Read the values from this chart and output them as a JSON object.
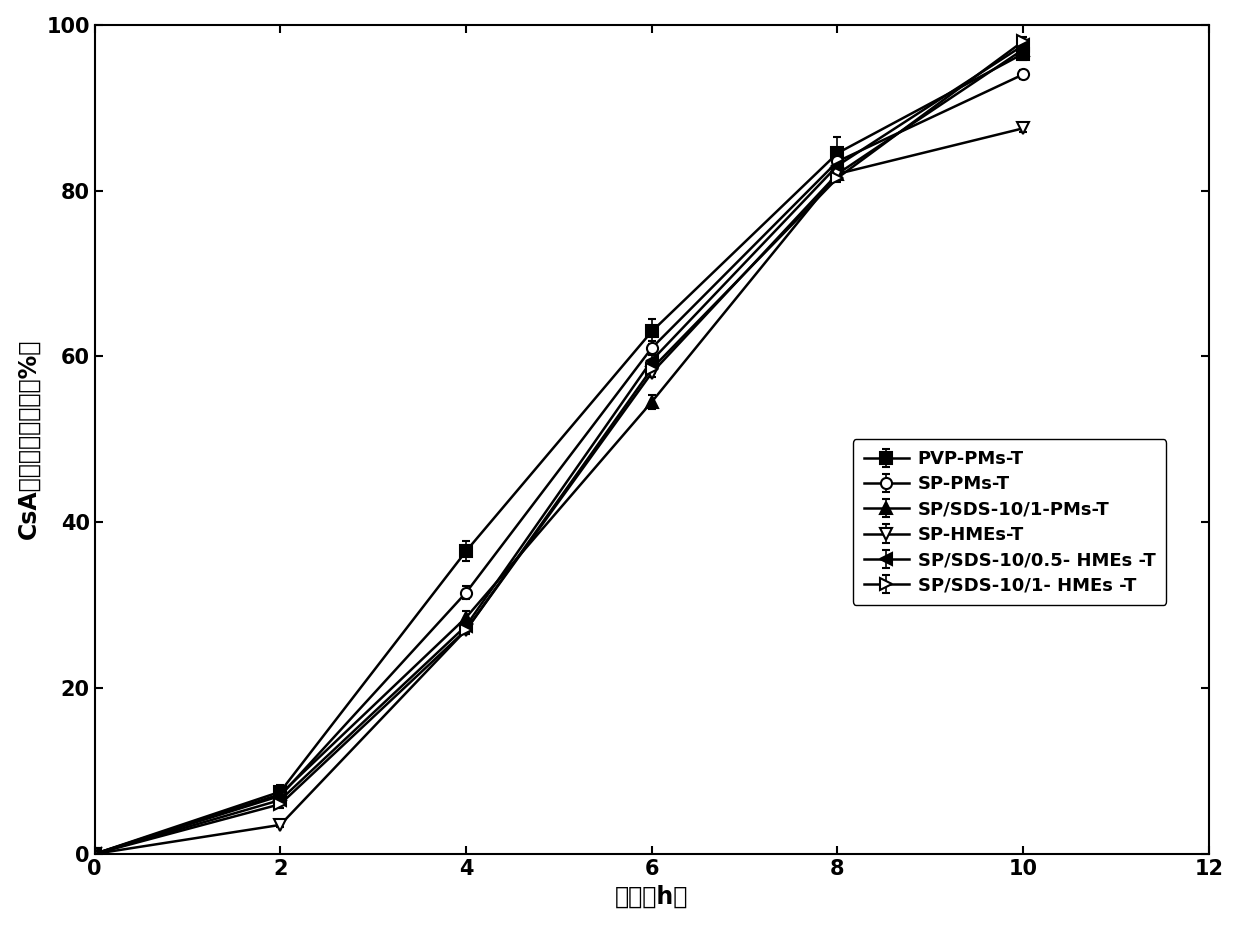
{
  "x": [
    0,
    2,
    4,
    6,
    8,
    10
  ],
  "series": [
    {
      "label": "PVP-PMs-T",
      "y": [
        0,
        7.5,
        36.5,
        63.0,
        84.5,
        96.5
      ],
      "yerr": [
        0,
        0.8,
        1.2,
        1.5,
        2.0,
        0.8
      ],
      "marker": "s",
      "filled": true,
      "color": "#000000",
      "markersize": 8
    },
    {
      "label": "SP-PMs-T",
      "y": [
        0,
        7.0,
        31.5,
        61.0,
        83.5,
        94.0
      ],
      "yerr": [
        0,
        0.5,
        0.8,
        0.8,
        0.5,
        0.5
      ],
      "marker": "o",
      "filled": false,
      "color": "#000000",
      "markersize": 8
    },
    {
      "label": "SP/SDS-10/1-PMs-T",
      "y": [
        0,
        7.2,
        28.5,
        54.5,
        82.0,
        97.0
      ],
      "yerr": [
        0,
        0.5,
        0.8,
        0.8,
        0.5,
        0.5
      ],
      "marker": "^",
      "filled": true,
      "color": "#000000",
      "markersize": 8
    },
    {
      "label": "SP-HMEs-T",
      "y": [
        0,
        3.5,
        27.0,
        58.0,
        82.0,
        87.5
      ],
      "yerr": [
        0,
        0.3,
        0.5,
        0.5,
        0.5,
        0.5
      ],
      "marker": "v",
      "filled": false,
      "color": "#000000",
      "markersize": 8
    },
    {
      "label": "SP/SDS-10/0.5- HMEs -T",
      "y": [
        0,
        6.5,
        27.5,
        59.5,
        83.0,
        97.5
      ],
      "yerr": [
        0,
        0.5,
        0.8,
        0.8,
        1.5,
        0.5
      ],
      "marker": "<",
      "filled": true,
      "color": "#000000",
      "markersize": 8
    },
    {
      "label": "SP/SDS-10/1- HMEs -T",
      "y": [
        0,
        6.0,
        27.0,
        58.5,
        81.5,
        98.0
      ],
      "yerr": [
        0,
        0.5,
        0.5,
        0.5,
        0.5,
        0.5
      ],
      "marker": ">",
      "filled": false,
      "color": "#000000",
      "markersize": 8
    }
  ],
  "xlabel": "时间（h）",
  "ylabel": "CsA累积释放百分数（%）",
  "xlim": [
    0,
    12
  ],
  "ylim": [
    0,
    100
  ],
  "xticks": [
    0,
    2,
    4,
    6,
    8,
    10,
    12
  ],
  "yticks": [
    0,
    20,
    40,
    60,
    80,
    100
  ],
  "legend_fontsize": 13,
  "axis_label_fontsize": 17,
  "tick_fontsize": 15,
  "linewidth": 1.8,
  "capsize": 3
}
